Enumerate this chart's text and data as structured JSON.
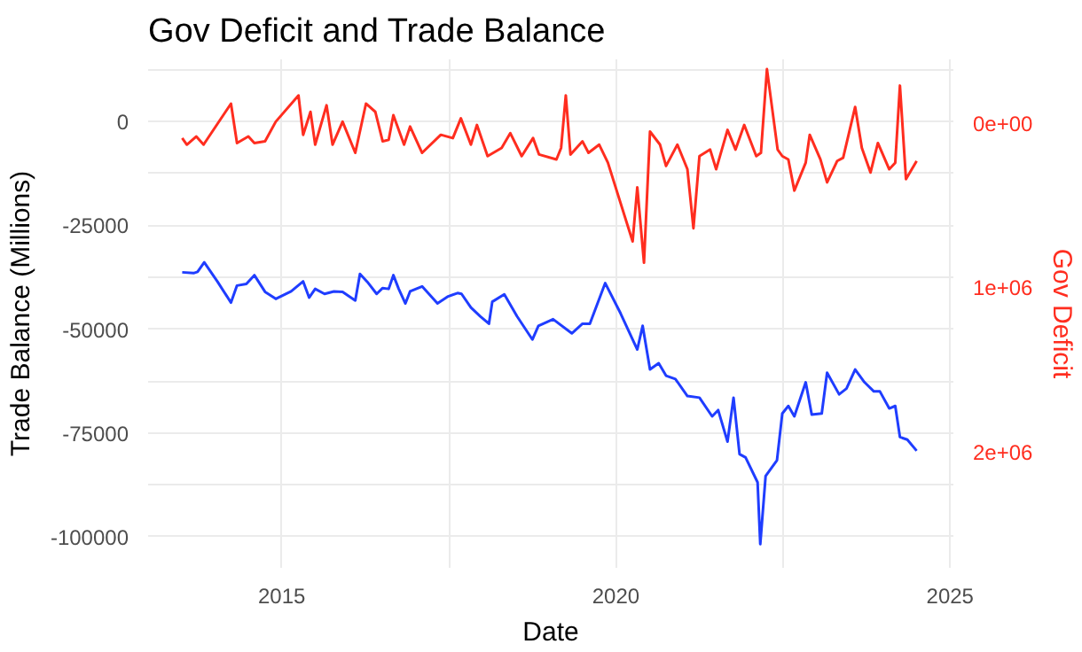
{
  "chart_data": {
    "type": "line",
    "title": "Gov Deficit and Trade Balance",
    "xlabel": "Date",
    "ylabel": "Trade Balance (Millions)",
    "y2label": "Gov Deficit",
    "xlim": [
      2013.0,
      2025.05
    ],
    "xticks": [
      2015,
      {
        "value": 2017.5,
        "label": null
      },
      2020,
      {
        "value": 2022.5,
        "label": null
      },
      2025
    ],
    "ylim": [
      -107500,
      15000
    ],
    "yticks": [
      {
        "value": 12500,
        "label": null
      },
      0,
      {
        "value": -12500,
        "label": null
      },
      -25000,
      {
        "value": -37500,
        "label": null
      },
      -50000,
      {
        "value": -62500,
        "label": null
      },
      -75000,
      {
        "value": -87500,
        "label": null
      },
      -100000
    ],
    "y2lim": [
      2710000,
      -390000
    ],
    "y2ticks": [
      {
        "value": 0,
        "label": "0e+00"
      },
      {
        "value": 1000000,
        "label": "1e+06"
      },
      {
        "value": 2000000,
        "label": "2e+06"
      }
    ],
    "grid": true,
    "line_style": "solid",
    "series": [
      {
        "color": "#1f3dff",
        "x": [
          2013.51,
          2013.68,
          2013.74,
          2013.84,
          2014.04,
          2014.24,
          2014.33,
          2014.47,
          2014.59,
          2014.75,
          2014.91,
          2015.14,
          2015.32,
          2015.41,
          2015.5,
          2015.64,
          2015.78,
          2015.91,
          2016.1,
          2016.17,
          2016.28,
          2016.42,
          2016.51,
          2016.6,
          2016.67,
          2016.75,
          2016.85,
          2016.92,
          2017.1,
          2017.33,
          2017.49,
          2017.63,
          2017.69,
          2017.83,
          2017.97,
          2018.1,
          2018.15,
          2018.33,
          2018.52,
          2018.75,
          2018.84,
          2019.06,
          2019.34,
          2019.5,
          2019.61,
          2019.84,
          2020.07,
          2020.32,
          2020.4,
          2020.51,
          2020.64,
          2020.75,
          2020.89,
          2021.07,
          2021.25,
          2021.44,
          2021.53,
          2021.67,
          2021.76,
          2021.85,
          2021.94,
          2022.12,
          2022.16,
          2022.24,
          2022.41,
          2022.49,
          2022.58,
          2022.67,
          2022.84,
          2022.93,
          2023.08,
          2023.16,
          2023.34,
          2023.45,
          2023.58,
          2023.72,
          2023.86,
          2023.95,
          2024.09,
          2024.18,
          2024.25,
          2024.36,
          2024.5
        ],
        "values": [
          -36300,
          -36500,
          -36200,
          -33900,
          -38600,
          -43600,
          -39500,
          -39100,
          -37000,
          -41000,
          -42700,
          -40900,
          -38500,
          -42400,
          -40300,
          -41500,
          -40900,
          -41000,
          -43100,
          -36700,
          -38600,
          -41500,
          -40100,
          -40300,
          -37000,
          -40300,
          -43800,
          -40900,
          -39700,
          -43800,
          -42100,
          -41300,
          -41500,
          -44800,
          -46900,
          -48700,
          -43400,
          -41600,
          -46900,
          -52500,
          -49200,
          -47600,
          -51000,
          -48700,
          -48700,
          -38900,
          -46200,
          -54900,
          -49200,
          -59700,
          -58200,
          -61200,
          -62000,
          -66100,
          -66500,
          -71000,
          -69500,
          -77100,
          -66500,
          -80100,
          -80900,
          -86900,
          -101800,
          -85400,
          -81600,
          -70300,
          -68500,
          -71000,
          -62800,
          -70600,
          -70300,
          -60500,
          -65700,
          -64300,
          -59700,
          -62800,
          -65000,
          -65000,
          -69100,
          -68500,
          -76000,
          -76600,
          -79300
        ]
      },
      {
        "color": "#ff2d1f",
        "axis": "y2",
        "x": [
          2013.51,
          2013.58,
          2013.72,
          2013.83,
          2014.24,
          2014.33,
          2014.5,
          2014.59,
          2014.75,
          2014.91,
          2015.25,
          2015.32,
          2015.43,
          2015.5,
          2015.67,
          2015.76,
          2015.91,
          2016.1,
          2016.26,
          2016.4,
          2016.51,
          2016.6,
          2016.67,
          2016.83,
          2016.92,
          2017.1,
          2017.38,
          2017.56,
          2017.68,
          2017.83,
          2017.92,
          2018.08,
          2018.29,
          2018.42,
          2018.59,
          2018.76,
          2018.85,
          2019.11,
          2019.18,
          2019.25,
          2019.32,
          2019.5,
          2019.59,
          2019.75,
          2019.88,
          2020.25,
          2020.32,
          2020.42,
          2020.51,
          2020.66,
          2020.75,
          2020.92,
          2021.07,
          2021.16,
          2021.25,
          2021.41,
          2021.5,
          2021.67,
          2021.79,
          2021.92,
          2022.1,
          2022.17,
          2022.26,
          2022.42,
          2022.49,
          2022.58,
          2022.67,
          2022.84,
          2022.9,
          2023.06,
          2023.16,
          2023.31,
          2023.4,
          2023.58,
          2023.68,
          2023.81,
          2023.92,
          2024.09,
          2024.18,
          2024.25,
          2024.34,
          2024.5
        ],
        "values": [
          90000,
          130000,
          80000,
          130000,
          -120000,
          120000,
          80000,
          120000,
          110000,
          -10000,
          -170000,
          70000,
          -70000,
          130000,
          -110000,
          130000,
          -10000,
          180000,
          -120000,
          -70000,
          110000,
          100000,
          -50000,
          130000,
          20000,
          180000,
          70000,
          90000,
          -30000,
          130000,
          10000,
          200000,
          150000,
          60000,
          200000,
          90000,
          190000,
          220000,
          150000,
          -170000,
          190000,
          110000,
          180000,
          130000,
          240000,
          720000,
          390000,
          850000,
          50000,
          130000,
          260000,
          130000,
          280000,
          640000,
          200000,
          160000,
          280000,
          40000,
          160000,
          10000,
          200000,
          180000,
          -330000,
          160000,
          200000,
          220000,
          410000,
          240000,
          70000,
          220000,
          360000,
          230000,
          210000,
          -100000,
          150000,
          300000,
          120000,
          280000,
          240000,
          -230000,
          340000,
          230000
        ]
      }
    ]
  }
}
